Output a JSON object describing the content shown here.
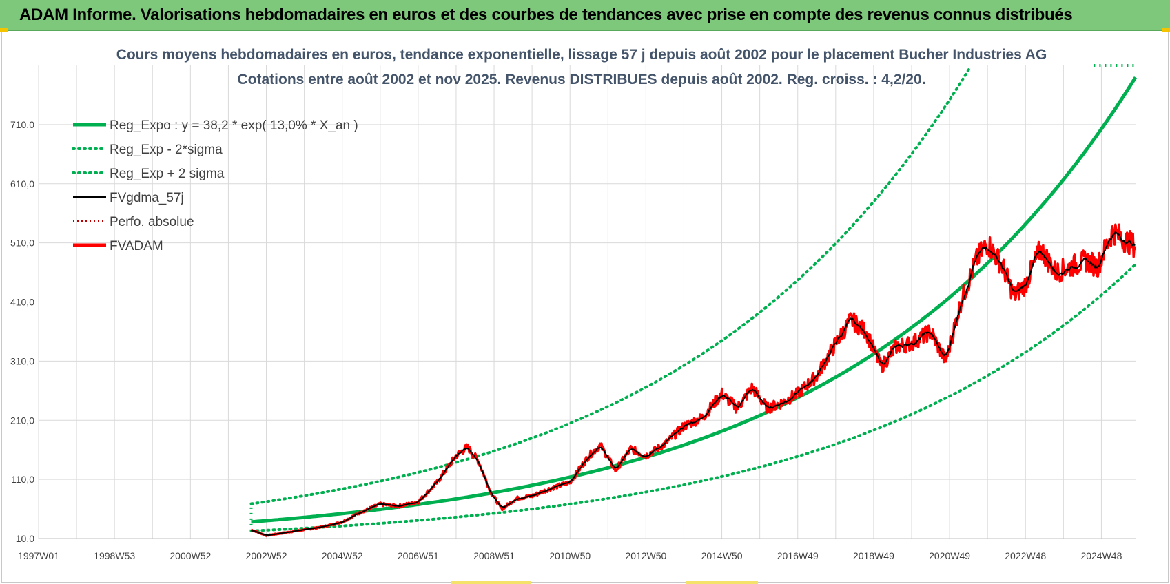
{
  "header": {
    "title": "ADAM Informe. Valorisations hebdomadaires en euros et des courbes de tendances avec prise en compte des revenus connus distribués"
  },
  "colors": {
    "header_bg": "#7dc87a",
    "green": "#00b050",
    "red": "#ff0000",
    "black": "#000000",
    "grid": "#d9d9d9"
  },
  "chart_data": {
    "type": "line",
    "title_lines": [
      "Cours moyens hebdomadaires en euros, tendance exponentielle, lissage 57 j depuis août 2002 pour le placement Bucher Industries AG",
      "Cotations entre août 2002 et nov 2025. Revenus DISTRIBUES depuis août 2002. Reg. croiss. : 4,2/20."
    ],
    "x_start_year": 1997.0,
    "x_end_year": 2025.9,
    "x_tick_labels": [
      "1997W01",
      "1998W53",
      "2000W52",
      "2002W52",
      "2004W52",
      "2006W51",
      "2008W51",
      "2010W50",
      "2012W50",
      "2014W50",
      "2016W49",
      "2018W49",
      "2020W49",
      "2022W48",
      "2024W48"
    ],
    "x_tick_years": [
      1997.0,
      1999.0,
      2001.0,
      2003.0,
      2005.0,
      2007.0,
      2009.0,
      2011.0,
      2013.0,
      2015.0,
      2017.0,
      2019.0,
      2021.0,
      2023.0,
      2025.0
    ],
    "y_ticks": [
      "10,0",
      "110,0",
      "210,0",
      "310,0",
      "410,0",
      "510,0",
      "610,0",
      "710,0"
    ],
    "y_tick_values": [
      10,
      110,
      210,
      310,
      410,
      510,
      610,
      710
    ],
    "ylim": [
      10,
      810
    ],
    "series_start_year": 2002.6,
    "regression": {
      "a": 38.2,
      "rate": 0.13,
      "x0_year": 2002.6
    },
    "sigma_lower_factor": 0.6,
    "sigma_upper_factor": 1.8,
    "price_points": [
      [
        2002.6,
        25
      ],
      [
        2003.0,
        15
      ],
      [
        2003.5,
        20
      ],
      [
        2004.0,
        25
      ],
      [
        2004.5,
        30
      ],
      [
        2005.0,
        38
      ],
      [
        2005.5,
        55
      ],
      [
        2006.0,
        68
      ],
      [
        2006.5,
        65
      ],
      [
        2007.0,
        72
      ],
      [
        2007.5,
        105
      ],
      [
        2008.0,
        150
      ],
      [
        2008.3,
        165
      ],
      [
        2008.6,
        140
      ],
      [
        2008.9,
        90
      ],
      [
        2009.2,
        60
      ],
      [
        2009.6,
        78
      ],
      [
        2010.0,
        82
      ],
      [
        2010.5,
        95
      ],
      [
        2011.0,
        105
      ],
      [
        2011.5,
        150
      ],
      [
        2011.8,
        168
      ],
      [
        2012.2,
        125
      ],
      [
        2012.6,
        162
      ],
      [
        2013.0,
        150
      ],
      [
        2013.5,
        170
      ],
      [
        2014.0,
        200
      ],
      [
        2014.5,
        215
      ],
      [
        2015.0,
        255
      ],
      [
        2015.4,
        230
      ],
      [
        2015.8,
        265
      ],
      [
        2016.2,
        230
      ],
      [
        2016.6,
        240
      ],
      [
        2017.0,
        255
      ],
      [
        2017.5,
        285
      ],
      [
        2018.0,
        340
      ],
      [
        2018.4,
        380
      ],
      [
        2018.8,
        360
      ],
      [
        2019.2,
        300
      ],
      [
        2019.6,
        335
      ],
      [
        2020.0,
        340
      ],
      [
        2020.5,
        360
      ],
      [
        2020.9,
        310
      ],
      [
        2021.3,
        410
      ],
      [
        2021.7,
        480
      ],
      [
        2022.0,
        510
      ],
      [
        2022.4,
        470
      ],
      [
        2022.7,
        420
      ],
      [
        2023.0,
        440
      ],
      [
        2023.4,
        500
      ],
      [
        2023.8,
        460
      ],
      [
        2024.2,
        470
      ],
      [
        2024.6,
        480
      ],
      [
        2024.9,
        470
      ],
      [
        2025.3,
        530
      ],
      [
        2025.6,
        515
      ],
      [
        2025.9,
        505
      ]
    ],
    "legend": [
      {
        "label": "Reg_Expo : y = 38,2 * exp( 13,0% *  X_an )",
        "style": "solid-green"
      },
      {
        "label": "Reg_Exp - 2*sigma",
        "style": "dotted-green"
      },
      {
        "label": "Reg_Exp + 2 sigma",
        "style": "dotted-green"
      },
      {
        "label": "FVgdma_57j",
        "style": "solid-black"
      },
      {
        "label": "Perfo. absolue",
        "style": "dotted-red"
      },
      {
        "label": "FVADAM",
        "style": "solid-red"
      }
    ]
  }
}
